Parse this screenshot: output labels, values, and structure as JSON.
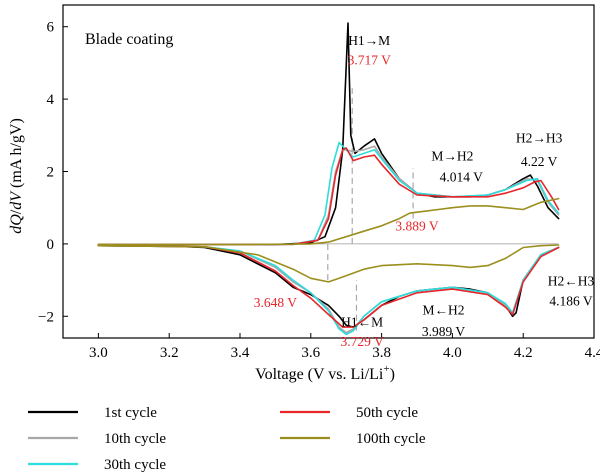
{
  "chart_data": {
    "type": "line",
    "title": "Blade coating",
    "xlabel": "Voltage (V vs. Li/Li",
    "xlabel_sup": "+",
    "xlabel_close": ")",
    "ylabel_parts": [
      "dQ",
      "/",
      "dV",
      " (mA h/gV)"
    ],
    "xlim": [
      2.9,
      4.4
    ],
    "ylim": [
      -2.6,
      6.6
    ],
    "xticks": [
      3.0,
      3.2,
      3.4,
      3.6,
      3.8,
      4.0,
      4.2,
      4.4
    ],
    "xtick_labels": [
      "3.0",
      "3.2",
      "3.4",
      "3.6",
      "3.8",
      "4.0",
      "4.2",
      "4.4"
    ],
    "yticks": [
      -2,
      0,
      2,
      4,
      6
    ],
    "ytick_labels": [
      "−2",
      "0",
      "2",
      "4",
      "6"
    ],
    "grid": false,
    "legend_position": "bottom",
    "series": [
      {
        "name": "1st cycle",
        "color": "#000000",
        "charge": [
          [
            3.0,
            -0.02
          ],
          [
            3.3,
            -0.02
          ],
          [
            3.5,
            -0.02
          ],
          [
            3.6,
            0.03
          ],
          [
            3.64,
            0.2
          ],
          [
            3.67,
            1.0
          ],
          [
            3.69,
            2.6
          ],
          [
            3.705,
            6.1
          ],
          [
            3.713,
            3.0
          ],
          [
            3.725,
            2.5
          ],
          [
            3.75,
            2.7
          ],
          [
            3.78,
            2.9
          ],
          [
            3.8,
            2.5
          ],
          [
            3.85,
            1.8
          ],
          [
            3.9,
            1.4
          ],
          [
            3.95,
            1.3
          ],
          [
            4.0,
            1.3
          ],
          [
            4.05,
            1.3
          ],
          [
            4.1,
            1.35
          ],
          [
            4.15,
            1.5
          ],
          [
            4.2,
            1.8
          ],
          [
            4.22,
            1.9
          ],
          [
            4.24,
            1.6
          ],
          [
            4.27,
            1.0
          ],
          [
            4.3,
            0.7
          ]
        ],
        "discharge": [
          [
            3.0,
            -0.05
          ],
          [
            3.2,
            -0.06
          ],
          [
            3.3,
            -0.1
          ],
          [
            3.4,
            -0.3
          ],
          [
            3.5,
            -0.8
          ],
          [
            3.55,
            -1.2
          ],
          [
            3.6,
            -1.4
          ],
          [
            3.65,
            -1.7
          ],
          [
            3.68,
            -2.0
          ],
          [
            3.7,
            -2.25
          ],
          [
            3.72,
            -2.3
          ],
          [
            3.75,
            -2.1
          ],
          [
            3.8,
            -1.7
          ],
          [
            3.85,
            -1.45
          ],
          [
            3.9,
            -1.3
          ],
          [
            3.95,
            -1.25
          ],
          [
            4.0,
            -1.2
          ],
          [
            4.05,
            -1.25
          ],
          [
            4.1,
            -1.35
          ],
          [
            4.15,
            -1.7
          ],
          [
            4.17,
            -2.0
          ],
          [
            4.18,
            -1.9
          ],
          [
            4.2,
            -1.0
          ],
          [
            4.25,
            -0.3
          ],
          [
            4.3,
            -0.1
          ]
        ]
      },
      {
        "name": "10th cycle",
        "color": "#a8a8a8",
        "charge": [
          [
            3.0,
            -0.02
          ],
          [
            3.3,
            -0.02
          ],
          [
            3.55,
            -0.01
          ],
          [
            3.62,
            0.1
          ],
          [
            3.65,
            0.8
          ],
          [
            3.67,
            2.0
          ],
          [
            3.69,
            2.6
          ],
          [
            3.7,
            2.6
          ],
          [
            3.72,
            2.55
          ],
          [
            3.75,
            2.6
          ],
          [
            3.78,
            2.7
          ],
          [
            3.8,
            2.4
          ],
          [
            3.85,
            1.8
          ],
          [
            3.9,
            1.4
          ],
          [
            4.0,
            1.3
          ],
          [
            4.1,
            1.35
          ],
          [
            4.15,
            1.5
          ],
          [
            4.21,
            1.8
          ],
          [
            4.24,
            1.75
          ],
          [
            4.27,
            1.15
          ],
          [
            4.3,
            0.8
          ]
        ],
        "discharge": [
          [
            3.0,
            -0.05
          ],
          [
            3.3,
            -0.08
          ],
          [
            3.4,
            -0.2
          ],
          [
            3.5,
            -0.65
          ],
          [
            3.55,
            -1.05
          ],
          [
            3.6,
            -1.35
          ],
          [
            3.65,
            -1.8
          ],
          [
            3.68,
            -2.3
          ],
          [
            3.7,
            -2.45
          ],
          [
            3.72,
            -2.35
          ],
          [
            3.75,
            -2.0
          ],
          [
            3.8,
            -1.6
          ],
          [
            3.9,
            -1.3
          ],
          [
            4.0,
            -1.2
          ],
          [
            4.1,
            -1.35
          ],
          [
            4.15,
            -1.7
          ],
          [
            4.17,
            -1.95
          ],
          [
            4.2,
            -1.0
          ],
          [
            4.25,
            -0.3
          ],
          [
            4.3,
            -0.1
          ]
        ]
      },
      {
        "name": "30th cycle",
        "color": "#2ddcdc",
        "charge": [
          [
            3.0,
            -0.02
          ],
          [
            3.3,
            -0.02
          ],
          [
            3.55,
            -0.01
          ],
          [
            3.61,
            0.1
          ],
          [
            3.64,
            0.8
          ],
          [
            3.66,
            2.1
          ],
          [
            3.68,
            2.8
          ],
          [
            3.7,
            2.6
          ],
          [
            3.72,
            2.4
          ],
          [
            3.75,
            2.5
          ],
          [
            3.78,
            2.6
          ],
          [
            3.8,
            2.35
          ],
          [
            3.85,
            1.75
          ],
          [
            3.9,
            1.4
          ],
          [
            4.0,
            1.3
          ],
          [
            4.1,
            1.35
          ],
          [
            4.15,
            1.5
          ],
          [
            4.21,
            1.75
          ],
          [
            4.24,
            1.8
          ],
          [
            4.27,
            1.2
          ],
          [
            4.3,
            0.85
          ]
        ],
        "discharge": [
          [
            3.0,
            -0.05
          ],
          [
            3.3,
            -0.08
          ],
          [
            3.4,
            -0.2
          ],
          [
            3.5,
            -0.6
          ],
          [
            3.55,
            -1.0
          ],
          [
            3.6,
            -1.35
          ],
          [
            3.65,
            -1.85
          ],
          [
            3.68,
            -2.35
          ],
          [
            3.7,
            -2.5
          ],
          [
            3.72,
            -2.4
          ],
          [
            3.75,
            -2.0
          ],
          [
            3.8,
            -1.6
          ],
          [
            3.9,
            -1.3
          ],
          [
            4.0,
            -1.2
          ],
          [
            4.1,
            -1.35
          ],
          [
            4.15,
            -1.65
          ],
          [
            4.17,
            -1.9
          ],
          [
            4.2,
            -1.0
          ],
          [
            4.25,
            -0.3
          ],
          [
            4.3,
            -0.1
          ]
        ]
      },
      {
        "name": "50th cycle",
        "color": "#e8262b",
        "charge": [
          [
            3.0,
            -0.02
          ],
          [
            3.3,
            -0.02
          ],
          [
            3.55,
            -0.01
          ],
          [
            3.62,
            0.1
          ],
          [
            3.65,
            0.7
          ],
          [
            3.67,
            1.9
          ],
          [
            3.69,
            2.6
          ],
          [
            3.7,
            2.65
          ],
          [
            3.72,
            2.3
          ],
          [
            3.75,
            2.4
          ],
          [
            3.78,
            2.45
          ],
          [
            3.8,
            2.2
          ],
          [
            3.85,
            1.65
          ],
          [
            3.9,
            1.35
          ],
          [
            4.0,
            1.3
          ],
          [
            4.1,
            1.3
          ],
          [
            4.15,
            1.4
          ],
          [
            4.2,
            1.55
          ],
          [
            4.23,
            1.7
          ],
          [
            4.25,
            1.75
          ],
          [
            4.28,
            1.3
          ],
          [
            4.3,
            0.95
          ]
        ],
        "discharge": [
          [
            3.0,
            -0.05
          ],
          [
            3.3,
            -0.08
          ],
          [
            3.4,
            -0.25
          ],
          [
            3.5,
            -0.75
          ],
          [
            3.55,
            -1.15
          ],
          [
            3.6,
            -1.5
          ],
          [
            3.65,
            -1.95
          ],
          [
            3.69,
            -2.3
          ],
          [
            3.72,
            -2.3
          ],
          [
            3.75,
            -2.1
          ],
          [
            3.8,
            -1.7
          ],
          [
            3.9,
            -1.35
          ],
          [
            4.0,
            -1.25
          ],
          [
            4.1,
            -1.4
          ],
          [
            4.15,
            -1.75
          ],
          [
            4.17,
            -1.95
          ],
          [
            4.2,
            -1.05
          ],
          [
            4.25,
            -0.35
          ],
          [
            4.3,
            -0.1
          ]
        ]
      },
      {
        "name": "100th cycle",
        "color": "#9b8f1e",
        "charge": [
          [
            3.0,
            -0.02
          ],
          [
            3.4,
            -0.02
          ],
          [
            3.6,
            0.0
          ],
          [
            3.65,
            0.05
          ],
          [
            3.7,
            0.2
          ],
          [
            3.75,
            0.35
          ],
          [
            3.8,
            0.5
          ],
          [
            3.85,
            0.7
          ],
          [
            3.88,
            0.85
          ],
          [
            3.92,
            0.9
          ],
          [
            3.96,
            0.95
          ],
          [
            4.0,
            1.0
          ],
          [
            4.05,
            1.05
          ],
          [
            4.1,
            1.05
          ],
          [
            4.15,
            1.0
          ],
          [
            4.2,
            0.95
          ],
          [
            4.25,
            1.15
          ],
          [
            4.3,
            1.25
          ]
        ],
        "discharge": [
          [
            3.0,
            -0.05
          ],
          [
            3.3,
            -0.08
          ],
          [
            3.45,
            -0.3
          ],
          [
            3.55,
            -0.7
          ],
          [
            3.6,
            -0.95
          ],
          [
            3.65,
            -1.05
          ],
          [
            3.68,
            -0.95
          ],
          [
            3.75,
            -0.7
          ],
          [
            3.8,
            -0.6
          ],
          [
            3.9,
            -0.55
          ],
          [
            4.0,
            -0.6
          ],
          [
            4.05,
            -0.65
          ],
          [
            4.1,
            -0.6
          ],
          [
            4.15,
            -0.4
          ],
          [
            4.2,
            -0.1
          ],
          [
            4.25,
            -0.05
          ],
          [
            4.3,
            -0.03
          ]
        ]
      }
    ],
    "dashed_markers": [
      {
        "x": 3.717,
        "y0": 0.0,
        "y1": 4.3,
        "color": "#a8a8a8"
      },
      {
        "x": 3.889,
        "y0": 0.7,
        "y1": 2.1,
        "color": "#a8a8a8"
      },
      {
        "x": 3.648,
        "y0": -1.0,
        "y1": 0.0,
        "color": "#a8a8a8"
      },
      {
        "x": 3.729,
        "y0": -2.4,
        "y1": -1.0,
        "color": "#a8a8a8"
      }
    ],
    "annotations": [
      {
        "text": "H1→M",
        "x": 3.765,
        "y": 5.5,
        "color": "black"
      },
      {
        "text": "3.717 V",
        "x": 3.765,
        "y": 4.95,
        "color": "red"
      },
      {
        "text": "M→H2",
        "x": 4.0,
        "y": 2.3,
        "color": "black"
      },
      {
        "text": "4.014 V",
        "x": 4.025,
        "y": 1.72,
        "color": "black"
      },
      {
        "text": "3.889 V",
        "x": 3.9,
        "y": 0.37,
        "color": "red"
      },
      {
        "text": "H2→H3",
        "x": 4.245,
        "y": 2.8,
        "color": "black"
      },
      {
        "text": "4.22 V",
        "x": 4.245,
        "y": 2.15,
        "color": "black"
      },
      {
        "text": "3.648 V",
        "x": 3.5,
        "y": -1.75,
        "color": "red"
      },
      {
        "text": "H1←M",
        "x": 3.745,
        "y": -2.28,
        "color": "black"
      },
      {
        "text": "3.729 V",
        "x": 3.745,
        "y": -2.82,
        "color": "red"
      },
      {
        "text": "M←H2",
        "x": 3.975,
        "y": -1.95,
        "color": "black"
      },
      {
        "text": "3.989 V",
        "x": 3.975,
        "y": -2.55,
        "color": "black"
      },
      {
        "text": "H2←H3",
        "x": 4.335,
        "y": -1.15,
        "color": "black"
      },
      {
        "text": "4.186 V",
        "x": 4.335,
        "y": -1.7,
        "color": "black"
      }
    ]
  }
}
